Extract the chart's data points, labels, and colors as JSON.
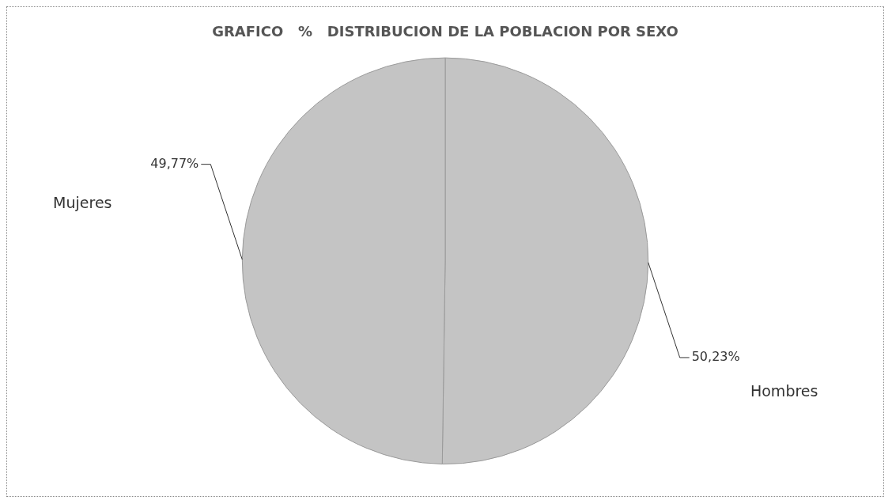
{
  "chart_data": {
    "type": "pie",
    "title": "GRAFICO   %   DISTRIBUCION DE LA POBLACION POR SEXO",
    "categories": [
      "Hombres",
      "Mujeres"
    ],
    "values": [
      50.23,
      49.77
    ],
    "colors": [
      "#c4c4c4",
      "#c4c4c4"
    ],
    "value_labels": [
      "50,23%",
      "49,77%"
    ]
  }
}
